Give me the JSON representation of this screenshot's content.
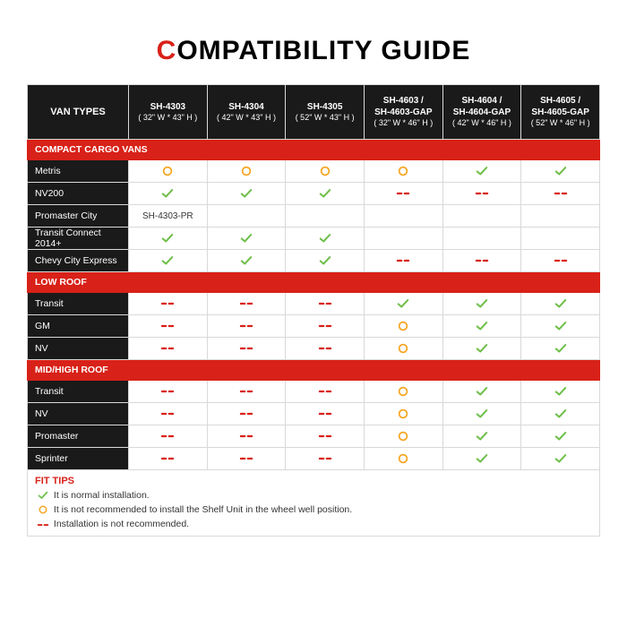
{
  "title_pre": "C",
  "title_rest": "OMPATIBILITY GUIDE",
  "colors": {
    "red": "#d82118",
    "black": "#1a1a1a",
    "green": "#6fbf4a",
    "orange": "#f5a623",
    "border": "#d9d9d9"
  },
  "legend_symbols": {
    "ok": "check",
    "warn": "circle",
    "no": "dash"
  },
  "header_first": "VAN TYPES",
  "columns": [
    {
      "sku": "SH-4303",
      "dim": "( 32\" W * 43\" H )"
    },
    {
      "sku": "SH-4304",
      "dim": "( 42\" W * 43\" H )"
    },
    {
      "sku": "SH-4305",
      "dim": "( 52\" W * 43\" H )"
    },
    {
      "sku": "SH-4603 /\nSH-4603-GAP",
      "dim": "( 32\" W * 46\" H )"
    },
    {
      "sku": "SH-4604 /\nSH-4604-GAP",
      "dim": "( 42\" W * 46\" H )"
    },
    {
      "sku": "SH-4605 /\nSH-4605-GAP",
      "dim": "( 52\" W * 46\" H )"
    }
  ],
  "sections": [
    {
      "title": "COMPACT CARGO VANS",
      "rows": [
        {
          "name": "Metris",
          "cells": [
            "warn",
            "warn",
            "warn",
            "warn",
            "ok",
            "ok"
          ]
        },
        {
          "name": "NV200",
          "cells": [
            "ok",
            "ok",
            "ok",
            "no",
            "no",
            "no"
          ]
        },
        {
          "name": "Promaster City",
          "cells": [
            "text:SH-4303-PR",
            "",
            "",
            "",
            "",
            ""
          ]
        },
        {
          "name": "Transit Connect 2014+",
          "cells": [
            "ok",
            "ok",
            "ok",
            "",
            "",
            ""
          ]
        },
        {
          "name": "Chevy City Express",
          "cells": [
            "ok",
            "ok",
            "ok",
            "no",
            "no",
            "no"
          ]
        }
      ]
    },
    {
      "title": "LOW ROOF",
      "rows": [
        {
          "name": "Transit",
          "cells": [
            "no",
            "no",
            "no",
            "ok",
            "ok",
            "ok"
          ]
        },
        {
          "name": "GM",
          "cells": [
            "no",
            "no",
            "no",
            "warn",
            "ok",
            "ok"
          ]
        },
        {
          "name": "NV",
          "cells": [
            "no",
            "no",
            "no",
            "warn",
            "ok",
            "ok"
          ]
        }
      ]
    },
    {
      "title": "MID/HIGH ROOF",
      "rows": [
        {
          "name": "Transit",
          "cells": [
            "no",
            "no",
            "no",
            "warn",
            "ok",
            "ok"
          ]
        },
        {
          "name": "NV",
          "cells": [
            "no",
            "no",
            "no",
            "warn",
            "ok",
            "ok"
          ]
        },
        {
          "name": "Promaster",
          "cells": [
            "no",
            "no",
            "no",
            "warn",
            "ok",
            "ok"
          ]
        },
        {
          "name": "Sprinter",
          "cells": [
            "no",
            "no",
            "no",
            "warn",
            "ok",
            "ok"
          ]
        }
      ]
    }
  ],
  "fit_title": "FIT TIPS",
  "fit_rows": [
    {
      "icon": "ok",
      "text": "It is normal installation."
    },
    {
      "icon": "warn",
      "text": "It is not recommended to install the Shelf Unit in the wheel well position."
    },
    {
      "icon": "no",
      "text": "Installation is not recommended."
    }
  ]
}
